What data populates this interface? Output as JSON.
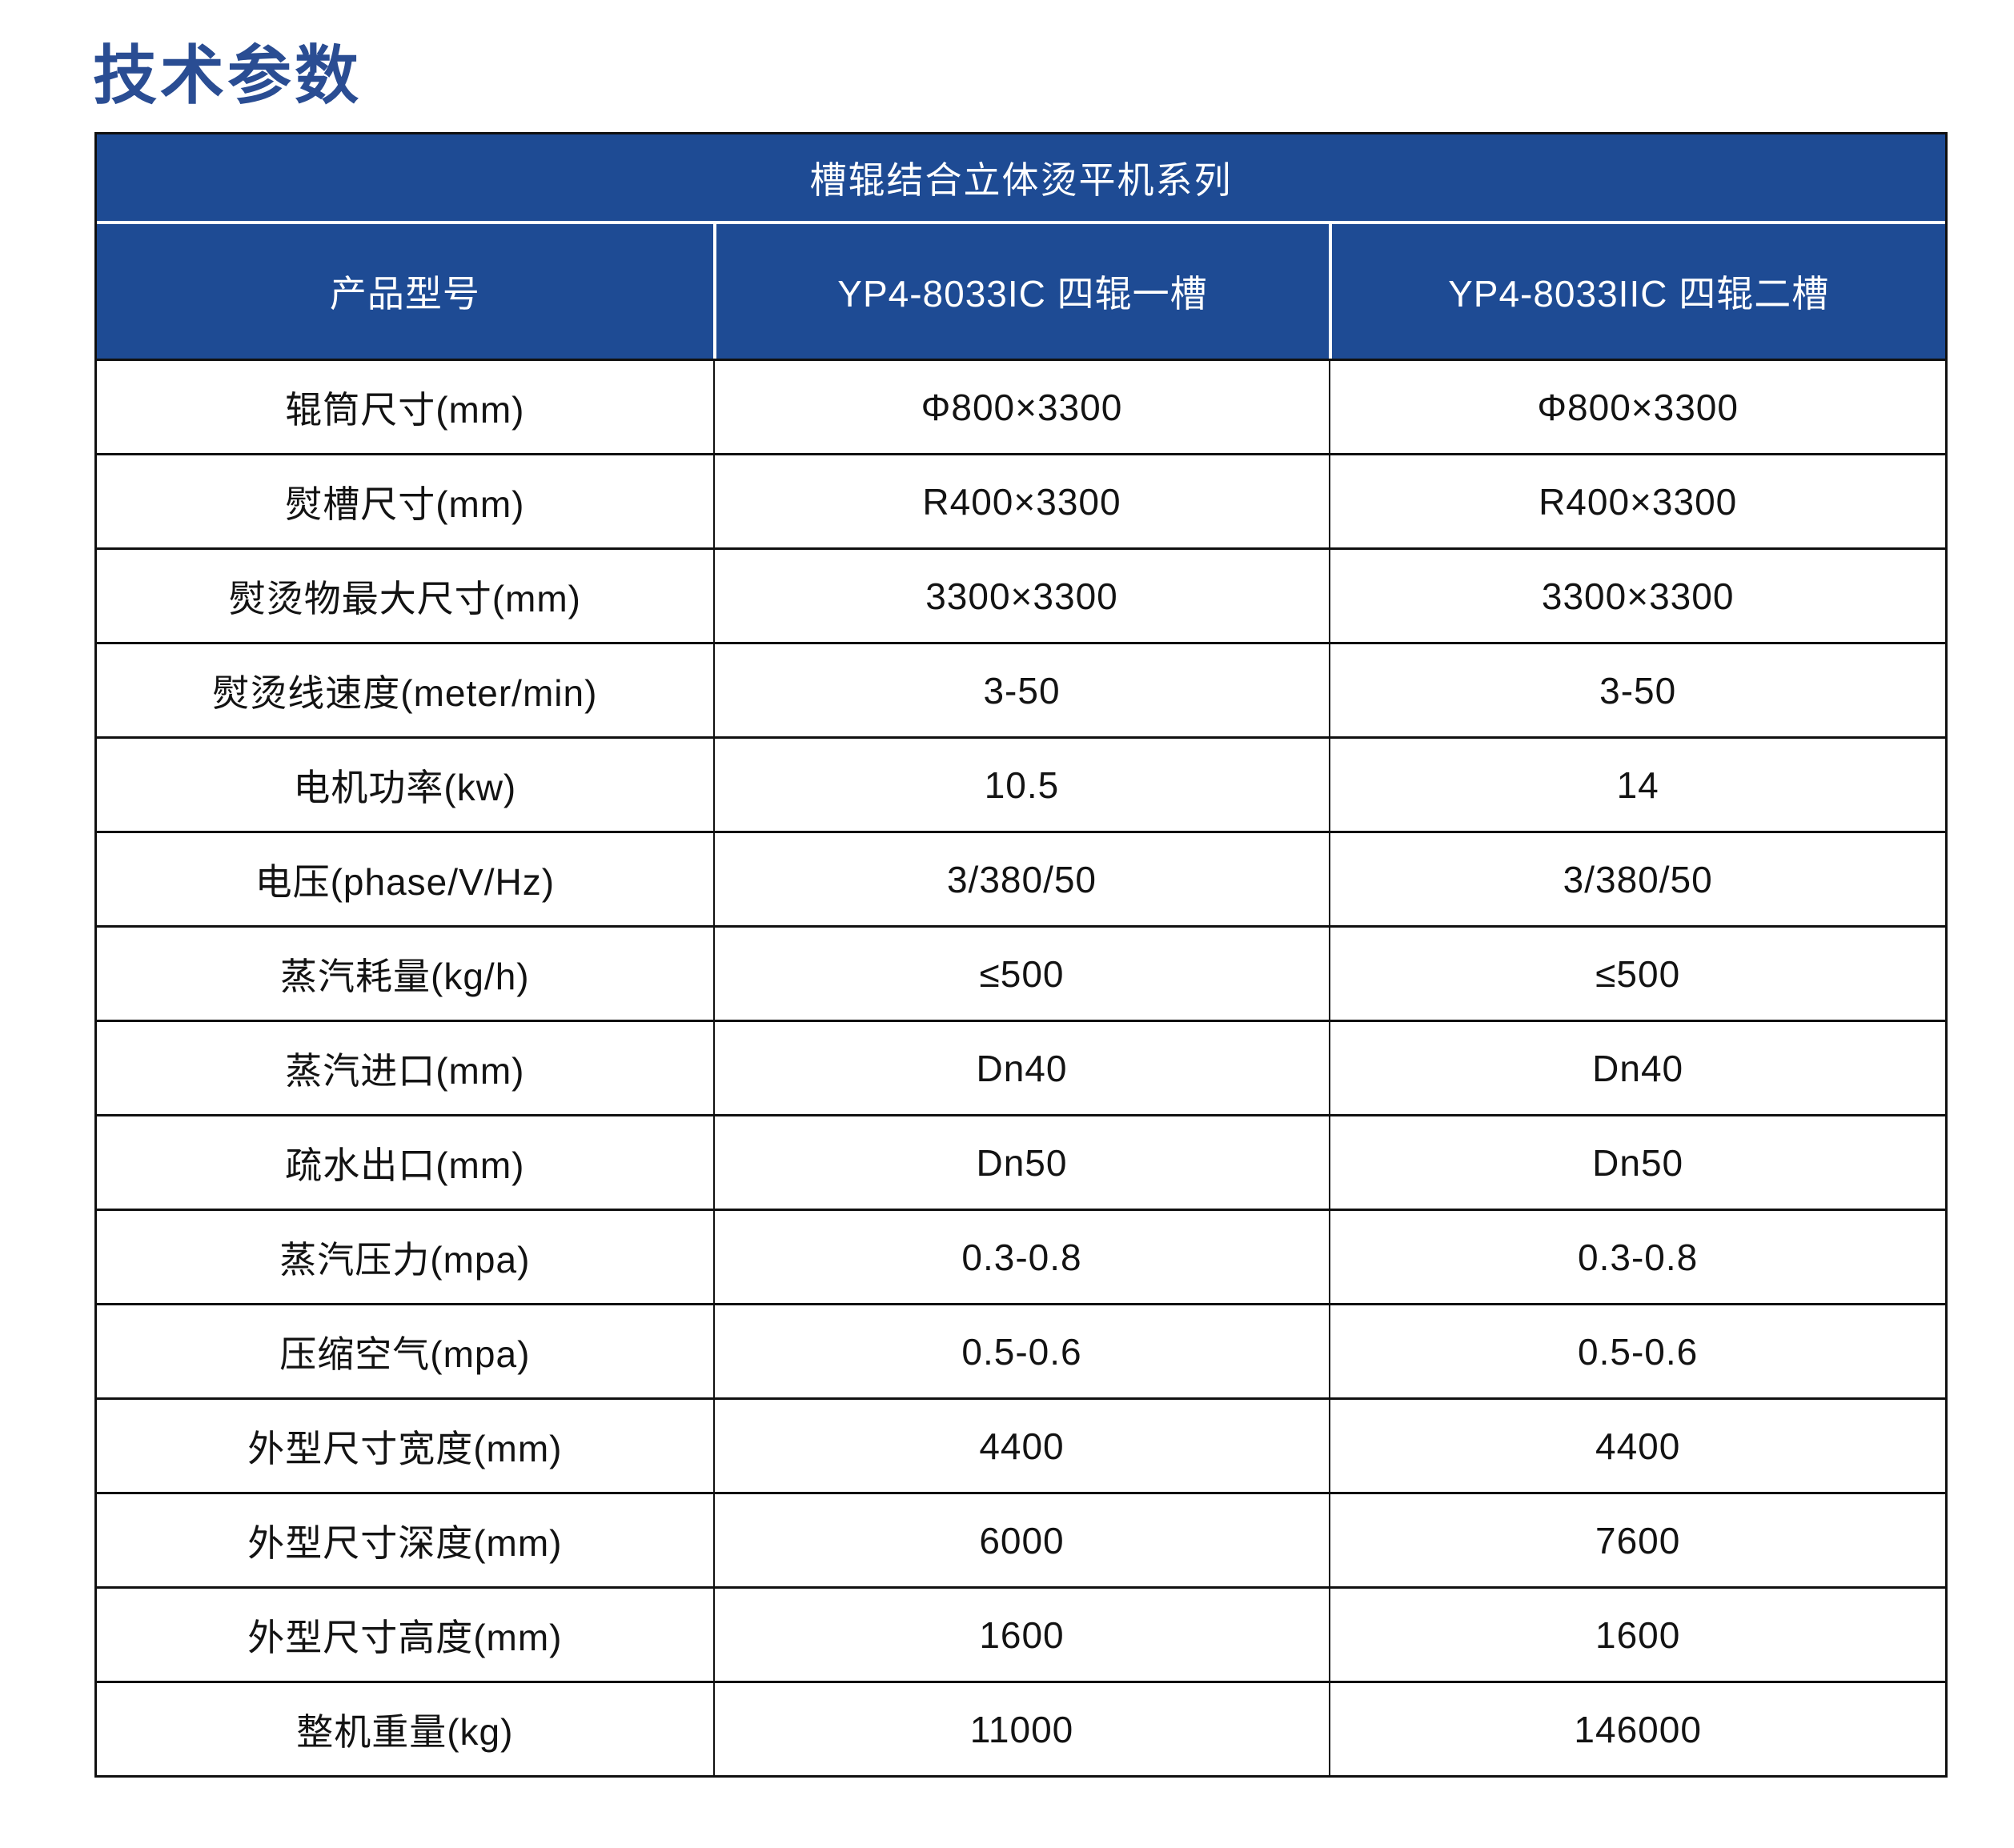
{
  "page": {
    "title": "技术参数",
    "title_color": "#2a4d93",
    "background": "#ffffff"
  },
  "table": {
    "header_bg": "#1e4b94",
    "header_text_color": "#ffffff",
    "border_color": "#101010",
    "series_title": "槽辊结合立体烫平机系列",
    "columns": {
      "label": "产品型号",
      "model1": "YP4-8033IC 四辊一槽",
      "model2": "YP4-8033IIC 四辊二槽"
    },
    "rows": [
      {
        "label": "辊筒尺寸(mm)",
        "v1": "Φ800×3300",
        "v2": "Φ800×3300"
      },
      {
        "label": "熨槽尺寸(mm)",
        "v1": "R400×3300",
        "v2": "R400×3300"
      },
      {
        "label": "熨烫物最大尺寸(mm)",
        "v1": "3300×3300",
        "v2": "3300×3300"
      },
      {
        "label": "熨烫线速度(meter/min)",
        "v1": "3-50",
        "v2": "3-50"
      },
      {
        "label": "电机功率(kw)",
        "v1": "10.5",
        "v2": "14"
      },
      {
        "label": "电压(phase/V/Hz)",
        "v1": "3/380/50",
        "v2": "3/380/50"
      },
      {
        "label": "蒸汽耗量(kg/h)",
        "v1": "≤500",
        "v2": "≤500"
      },
      {
        "label": "蒸汽进口(mm)",
        "v1": "Dn40",
        "v2": "Dn40"
      },
      {
        "label": "疏水出口(mm)",
        "v1": "Dn50",
        "v2": "Dn50"
      },
      {
        "label": "蒸汽压力(mpa)",
        "v1": "0.3-0.8",
        "v2": "0.3-0.8"
      },
      {
        "label": "压缩空气(mpa)",
        "v1": "0.5-0.6",
        "v2": "0.5-0.6"
      },
      {
        "label": "外型尺寸宽度(mm)",
        "v1": "4400",
        "v2": "4400"
      },
      {
        "label": "外型尺寸深度(mm)",
        "v1": "6000",
        "v2": "7600"
      },
      {
        "label": "外型尺寸高度(mm)",
        "v1": "1600",
        "v2": "1600"
      },
      {
        "label": "整机重量(kg)",
        "v1": "11000",
        "v2": "146000"
      }
    ]
  }
}
